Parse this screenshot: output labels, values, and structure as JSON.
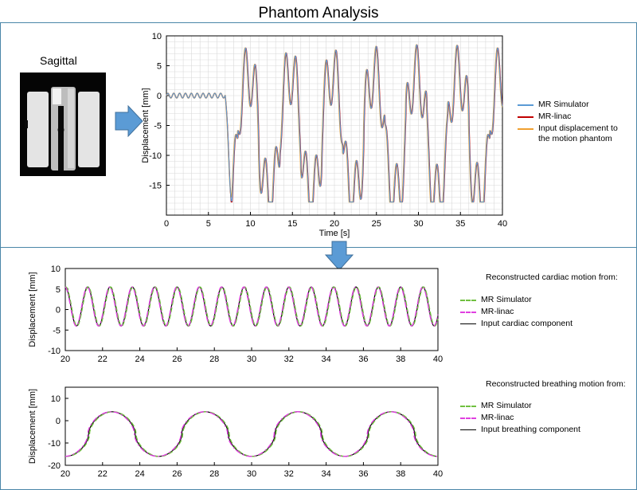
{
  "page": {
    "title": "Phantom Analysis"
  },
  "phantom_image": {
    "label": "Sagittal"
  },
  "chart_data": [
    {
      "type": "line",
      "title": "",
      "xlabel": "Time [s]",
      "ylabel": "Displacement [mm]",
      "xlim": [
        0,
        40
      ],
      "ylim": [
        -20,
        10
      ],
      "xticks": [
        0,
        5,
        10,
        15,
        20,
        25,
        30,
        35,
        40
      ],
      "yticks": [
        -15,
        -10,
        -5,
        0,
        5,
        10
      ],
      "grid": true,
      "legend_position": "right",
      "signal": {
        "onset_s": 7.0,
        "baseline_mm": 0,
        "breathing_period_s": 5.0,
        "breathing_min_mm": -16,
        "breathing_max_mm": 4,
        "cardiac_period_s": 1.2,
        "cardiac_amplitude_mm": 5
      },
      "series": [
        {
          "name": "MR Simulator",
          "color": "#5b9bd5",
          "style": "solid"
        },
        {
          "name": "MR-linac",
          "color": "#c00000",
          "style": "solid"
        },
        {
          "name": "Input displacement to the motion phantom",
          "color": "#f0a030",
          "style": "solid"
        }
      ],
      "legend_lines": [
        "MR Simulator",
        "MR-linac",
        "Input displacement to",
        "the motion phantom"
      ]
    },
    {
      "type": "line",
      "title": "Reconstructed cardiac motion from:",
      "xlabel": "",
      "ylabel": "Displacement [mm]",
      "xlim": [
        20,
        40
      ],
      "ylim": [
        -10,
        10
      ],
      "xticks": [
        20,
        22,
        24,
        26,
        28,
        30,
        32,
        34,
        36,
        38,
        40
      ],
      "yticks": [
        -10,
        -5,
        0,
        5,
        10
      ],
      "grid": false,
      "legend_position": "right",
      "signal": {
        "period_s": 1.2,
        "min_mm": -4,
        "max_mm": 5.5
      },
      "series": [
        {
          "name": "MR Simulator",
          "color": "#70c040",
          "style": "dashed"
        },
        {
          "name": "MR-linac",
          "color": "#e040e0",
          "style": "dashdot"
        },
        {
          "name": "Input cardiac component",
          "color": "#000000",
          "style": "solid"
        }
      ]
    },
    {
      "type": "line",
      "title": "Reconstructed breathing motion from:",
      "xlabel": "",
      "ylabel": "Displacement [mm]",
      "xlim": [
        20,
        40
      ],
      "ylim": [
        -20,
        15
      ],
      "xticks": [
        20,
        22,
        24,
        26,
        28,
        30,
        32,
        34,
        36,
        38,
        40
      ],
      "yticks": [
        -20,
        -10,
        0,
        10
      ],
      "grid": false,
      "legend_position": "right",
      "signal": {
        "period_s": 5.0,
        "min_mm": -16,
        "max_mm": 4,
        "min_time_s": 25.0
      },
      "series": [
        {
          "name": "MR Simulator",
          "color": "#70c040",
          "style": "dashed"
        },
        {
          "name": "MR-linac",
          "color": "#e040e0",
          "style": "dashdot"
        },
        {
          "name": "Input breathing component",
          "color": "#000000",
          "style": "solid"
        }
      ]
    }
  ],
  "colors": {
    "arrow": "#5b9bd5",
    "panel_border": "#4a86a8",
    "grid": "#d9d9d9"
  }
}
